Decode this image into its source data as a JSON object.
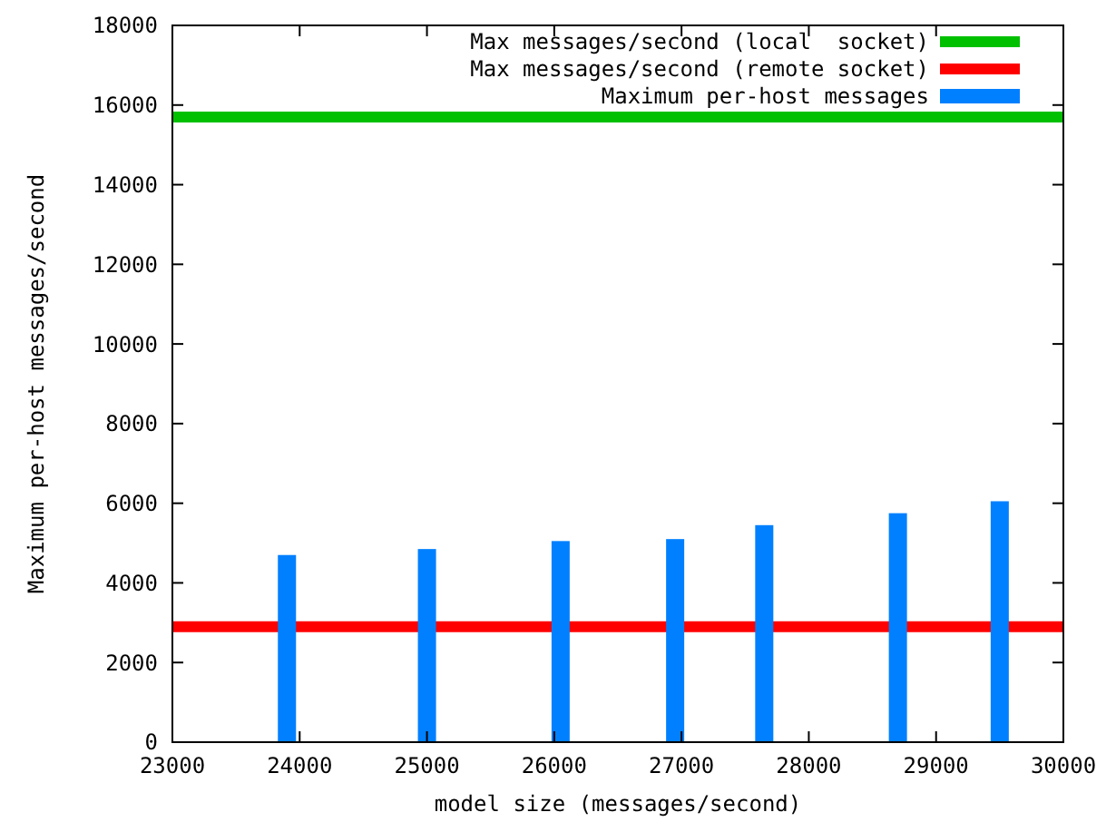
{
  "chart_data": {
    "type": "bar",
    "xlabel": "model size (messages/second)",
    "ylabel": "Maximum per-host messages/second",
    "xlim": [
      23000,
      30000
    ],
    "xticks": [
      23000,
      24000,
      25000,
      26000,
      27000,
      28000,
      29000,
      30000
    ],
    "ylim": [
      0,
      18000
    ],
    "yticks": [
      0,
      2000,
      4000,
      6000,
      8000,
      10000,
      12000,
      14000,
      16000,
      18000
    ],
    "series": [
      {
        "type": "line",
        "name": "Max messages/second (local  socket)",
        "color": "#00c000",
        "x": [
          23000,
          30000
        ],
        "values": [
          15700,
          15700
        ]
      },
      {
        "type": "line",
        "name": "Max messages/second (remote socket)",
        "color": "#ff0000",
        "x": [
          23000,
          30000
        ],
        "values": [
          2900,
          2900
        ]
      },
      {
        "name": "Maximum per-host messages",
        "color": "#0080ff",
        "x": [
          23900,
          25000,
          26050,
          26950,
          27650,
          28700,
          29500
        ],
        "values": [
          4700,
          4850,
          5050,
          5100,
          5450,
          5750,
          6050
        ]
      }
    ],
    "legend": "top right",
    "grid": false
  }
}
